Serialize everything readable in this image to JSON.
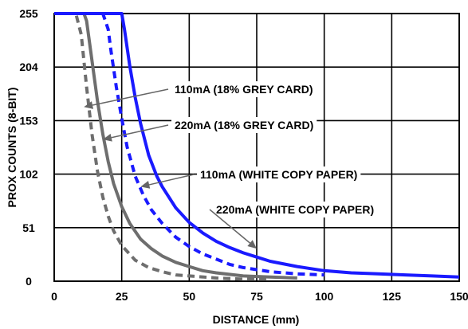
{
  "chart_data": {
    "type": "line",
    "title": "",
    "xlabel": "DISTANCE (mm)",
    "ylabel": "PROX COUNTS (8-BIT)",
    "xlim": [
      0,
      150
    ],
    "ylim": [
      0,
      255
    ],
    "x_ticks": [
      "0",
      "25",
      "50",
      "75",
      "100",
      "125",
      "150"
    ],
    "y_ticks": [
      "0",
      "51",
      "102",
      "153",
      "204",
      "255"
    ],
    "grid": true,
    "colors": {
      "blue": "#1a1aff",
      "grey": "#6e6e6e"
    },
    "series": [
      {
        "name": "110mA (18% GREY CARD)",
        "color": "#6e6e6e",
        "dash": true,
        "x": [
          0,
          8,
          10,
          12,
          14,
          16,
          18,
          20,
          22,
          25,
          30,
          35,
          40,
          45,
          50,
          60,
          70,
          80
        ],
        "y": [
          255,
          255,
          235,
          185,
          140,
          105,
          80,
          62,
          48,
          34,
          20,
          13,
          9,
          6,
          5,
          3,
          2,
          2
        ]
      },
      {
        "name": "220mA (18% GREY CARD)",
        "color": "#6e6e6e",
        "dash": false,
        "x": [
          0,
          11,
          12,
          14,
          16,
          18,
          20,
          22,
          25,
          28,
          32,
          36,
          40,
          45,
          50,
          55,
          60,
          70,
          80,
          90
        ],
        "y": [
          255,
          255,
          248,
          210,
          172,
          140,
          114,
          93,
          71,
          55,
          40,
          31,
          24,
          18,
          14,
          10,
          8,
          5,
          4,
          3
        ]
      },
      {
        "name": "110mA (WHITE COPY PAPER)",
        "color": "#1a1aff",
        "dash": true,
        "x": [
          0,
          18,
          20,
          21,
          23,
          25,
          27,
          30,
          33,
          36,
          40,
          45,
          50,
          55,
          60,
          65,
          70,
          80,
          90,
          100
        ],
        "y": [
          255,
          255,
          240,
          220,
          185,
          155,
          128,
          100,
          82,
          68,
          55,
          42,
          33,
          26,
          21,
          16,
          13,
          9,
          7,
          6
        ]
      },
      {
        "name": "220mA (WHITE COPY PAPER)",
        "color": "#1a1aff",
        "dash": false,
        "x": [
          0,
          25,
          26,
          28,
          30,
          32,
          35,
          38,
          40,
          45,
          50,
          55,
          60,
          65,
          70,
          75,
          80,
          90,
          100,
          110,
          120,
          130,
          140,
          150
        ],
        "y": [
          255,
          255,
          240,
          205,
          175,
          150,
          120,
          100,
          90,
          70,
          56,
          46,
          38,
          32,
          27,
          23,
          19,
          14,
          10,
          8,
          7,
          6,
          5,
          4
        ]
      }
    ],
    "annotations": [
      {
        "text": "110mA (18% GREY CARD)",
        "target": [
          11,
          166
        ]
      },
      {
        "text": "220mA (18% GREY CARD)",
        "target": [
          18,
          135
        ]
      },
      {
        "text": "110mA (WHITE COPY PAPER)",
        "target": [
          32,
          90
        ]
      },
      {
        "text": "220mA (WHITE COPY PAPER)",
        "target": [
          75,
          31
        ]
      }
    ]
  }
}
